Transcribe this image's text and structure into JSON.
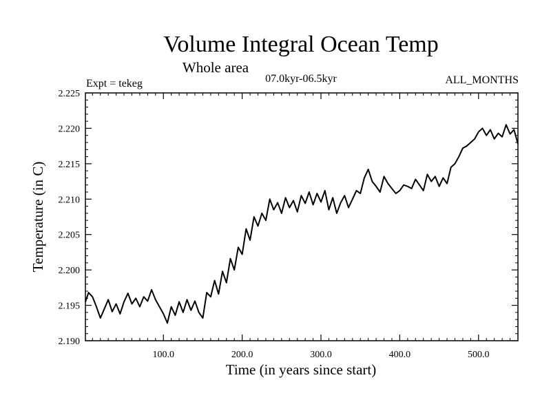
{
  "chart_data": {
    "type": "line",
    "title": "Volume Integral Ocean Temp",
    "subtitle": "Whole area",
    "period": "07.0kyr-06.5kyr",
    "experiment": "Expt = tekeg",
    "months": "ALL_MONTHS",
    "xlabel": "Time (in years since start)",
    "ylabel": "Temperature (in C)",
    "xlim": [
      1,
      550
    ],
    "ylim": [
      2.19,
      2.225
    ],
    "xticks": [
      100,
      200,
      300,
      400,
      500
    ],
    "xtick_labels": [
      "100.0",
      "200.0",
      "300.0",
      "400.0",
      "500.0"
    ],
    "yticks": [
      2.19,
      2.195,
      2.2,
      2.205,
      2.21,
      2.215,
      2.22,
      2.225
    ],
    "ytick_labels": [
      "2.190",
      "2.195",
      "2.200",
      "2.205",
      "2.210",
      "2.215",
      "2.220",
      "2.225"
    ],
    "grid": false,
    "series": [
      {
        "name": "Volume integral ocean temperature",
        "color": "#000000",
        "x": [
          1,
          5,
          10,
          15,
          20,
          25,
          30,
          35,
          40,
          45,
          50,
          55,
          60,
          65,
          70,
          75,
          80,
          85,
          90,
          95,
          100,
          105,
          110,
          115,
          120,
          125,
          130,
          135,
          140,
          145,
          150,
          155,
          160,
          165,
          170,
          175,
          180,
          185,
          190,
          195,
          200,
          205,
          210,
          215,
          220,
          225,
          230,
          235,
          240,
          245,
          250,
          255,
          260,
          265,
          270,
          275,
          280,
          285,
          290,
          295,
          300,
          305,
          310,
          315,
          320,
          325,
          330,
          335,
          340,
          345,
          350,
          355,
          360,
          365,
          370,
          375,
          380,
          385,
          390,
          395,
          400,
          405,
          410,
          415,
          420,
          425,
          430,
          435,
          440,
          445,
          450,
          455,
          460,
          465,
          470,
          475,
          480,
          485,
          490,
          495,
          500,
          505,
          510,
          515,
          520,
          525,
          530,
          535,
          540,
          545,
          550
        ],
        "values": [
          2.1955,
          2.1968,
          2.1962,
          2.1948,
          2.1932,
          2.1945,
          2.1958,
          2.1941,
          2.1952,
          2.1938,
          2.1955,
          2.1967,
          2.1952,
          2.196,
          2.1948,
          2.1962,
          2.1956,
          2.1972,
          2.1958,
          2.1948,
          2.1938,
          2.1925,
          2.1948,
          2.1936,
          2.1955,
          2.194,
          2.1958,
          2.1943,
          2.1956,
          2.194,
          2.1932,
          2.1968,
          2.1962,
          2.1985,
          2.1966,
          2.1998,
          2.1982,
          2.2016,
          2.2,
          2.2032,
          2.2022,
          2.2058,
          2.2042,
          2.2075,
          2.2062,
          2.208,
          2.207,
          2.21,
          2.2085,
          2.2095,
          2.208,
          2.2102,
          2.2088,
          2.2098,
          2.2082,
          2.2105,
          2.2094,
          2.211,
          2.2092,
          2.2108,
          2.2096,
          2.2112,
          2.2085,
          2.2102,
          2.208,
          2.2095,
          2.2105,
          2.2088,
          2.21,
          2.2112,
          2.2108,
          2.213,
          2.2142,
          2.2125,
          2.2118,
          2.211,
          2.2132,
          2.2122,
          2.2115,
          2.2108,
          2.2112,
          2.212,
          2.2118,
          2.2115,
          2.2128,
          2.212,
          2.2112,
          2.2135,
          2.2125,
          2.2132,
          2.2118,
          2.213,
          2.2122,
          2.2145,
          2.215,
          2.216,
          2.2172,
          2.2175,
          2.218,
          2.2185,
          2.2195,
          2.22,
          2.219,
          2.2198,
          2.2185,
          2.2193,
          2.2188,
          2.2205,
          2.2192,
          2.2198,
          2.2178
        ]
      }
    ]
  }
}
